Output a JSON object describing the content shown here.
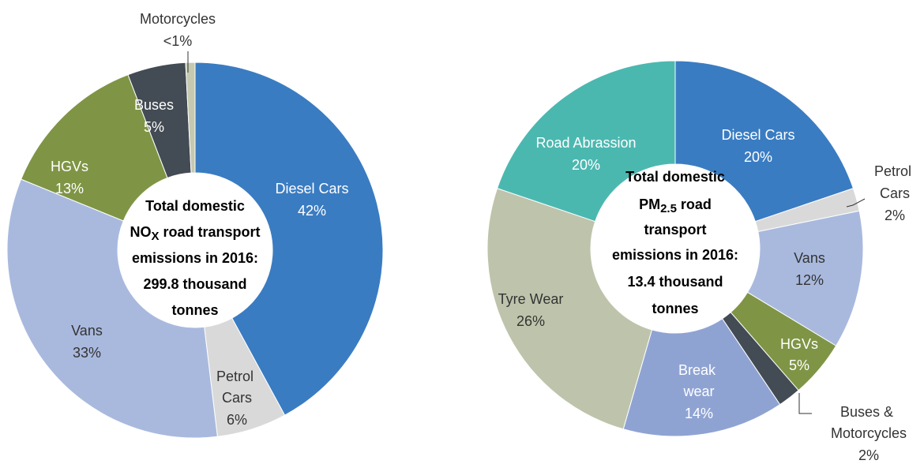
{
  "chart_data": [
    {
      "type": "donut",
      "categories": [
        "Diesel Cars",
        "Petrol Cars",
        "Vans",
        "HGVs",
        "Buses",
        "Motorcycles"
      ],
      "values": [
        42,
        6,
        33,
        13,
        5,
        0.8
      ],
      "value_labels": [
        "42%",
        "6%",
        "33%",
        "13%",
        "5%",
        "<1%"
      ],
      "colors": [
        "#3a7cc2",
        "#d9d9d9",
        "#a9b9de",
        "#7f9545",
        "#434b54",
        "#c4c9b0"
      ],
      "label_colors": [
        "#ffffff",
        "#333333",
        "#333333",
        "#ffffff",
        "#ffffff",
        "#333333"
      ],
      "center_text": [
        [
          "Total domestic"
        ],
        [
          "NO",
          {
            "text": "X",
            "sub": true
          },
          " road transport"
        ],
        [
          "emissions in 2016:"
        ],
        [
          "299.8 thousand"
        ],
        [
          "tonnes"
        ]
      ]
    },
    {
      "type": "donut",
      "categories": [
        "Diesel Cars",
        "Petrol Cars",
        "Vans",
        "HGVs",
        "Buses & Motorcycles",
        "Break wear",
        "Tyre Wear",
        "Road Abrassion"
      ],
      "values": [
        20,
        2,
        12,
        5,
        2,
        14,
        26,
        20
      ],
      "value_labels": [
        "20%",
        "2%",
        "12%",
        "5%",
        "2%",
        "14%",
        "26%",
        "20%"
      ],
      "colors": [
        "#3a7cc2",
        "#d9d9d9",
        "#a9b9de",
        "#7f9545",
        "#434b54",
        "#8fa3d3",
        "#bec4ab",
        "#4bb8b0"
      ],
      "label_colors": [
        "#ffffff",
        "#333333",
        "#333333",
        "#ffffff",
        "#333333",
        "#ffffff",
        "#333333",
        "#ffffff"
      ],
      "center_text": [
        [
          "Total domestic"
        ],
        [
          "PM",
          {
            "text": "2.5",
            "sub": true
          },
          " road"
        ],
        [
          "transport"
        ],
        [
          "emissions in 2016:"
        ],
        [
          "13.4 thousand"
        ],
        [
          "tonnes"
        ]
      ]
    }
  ]
}
